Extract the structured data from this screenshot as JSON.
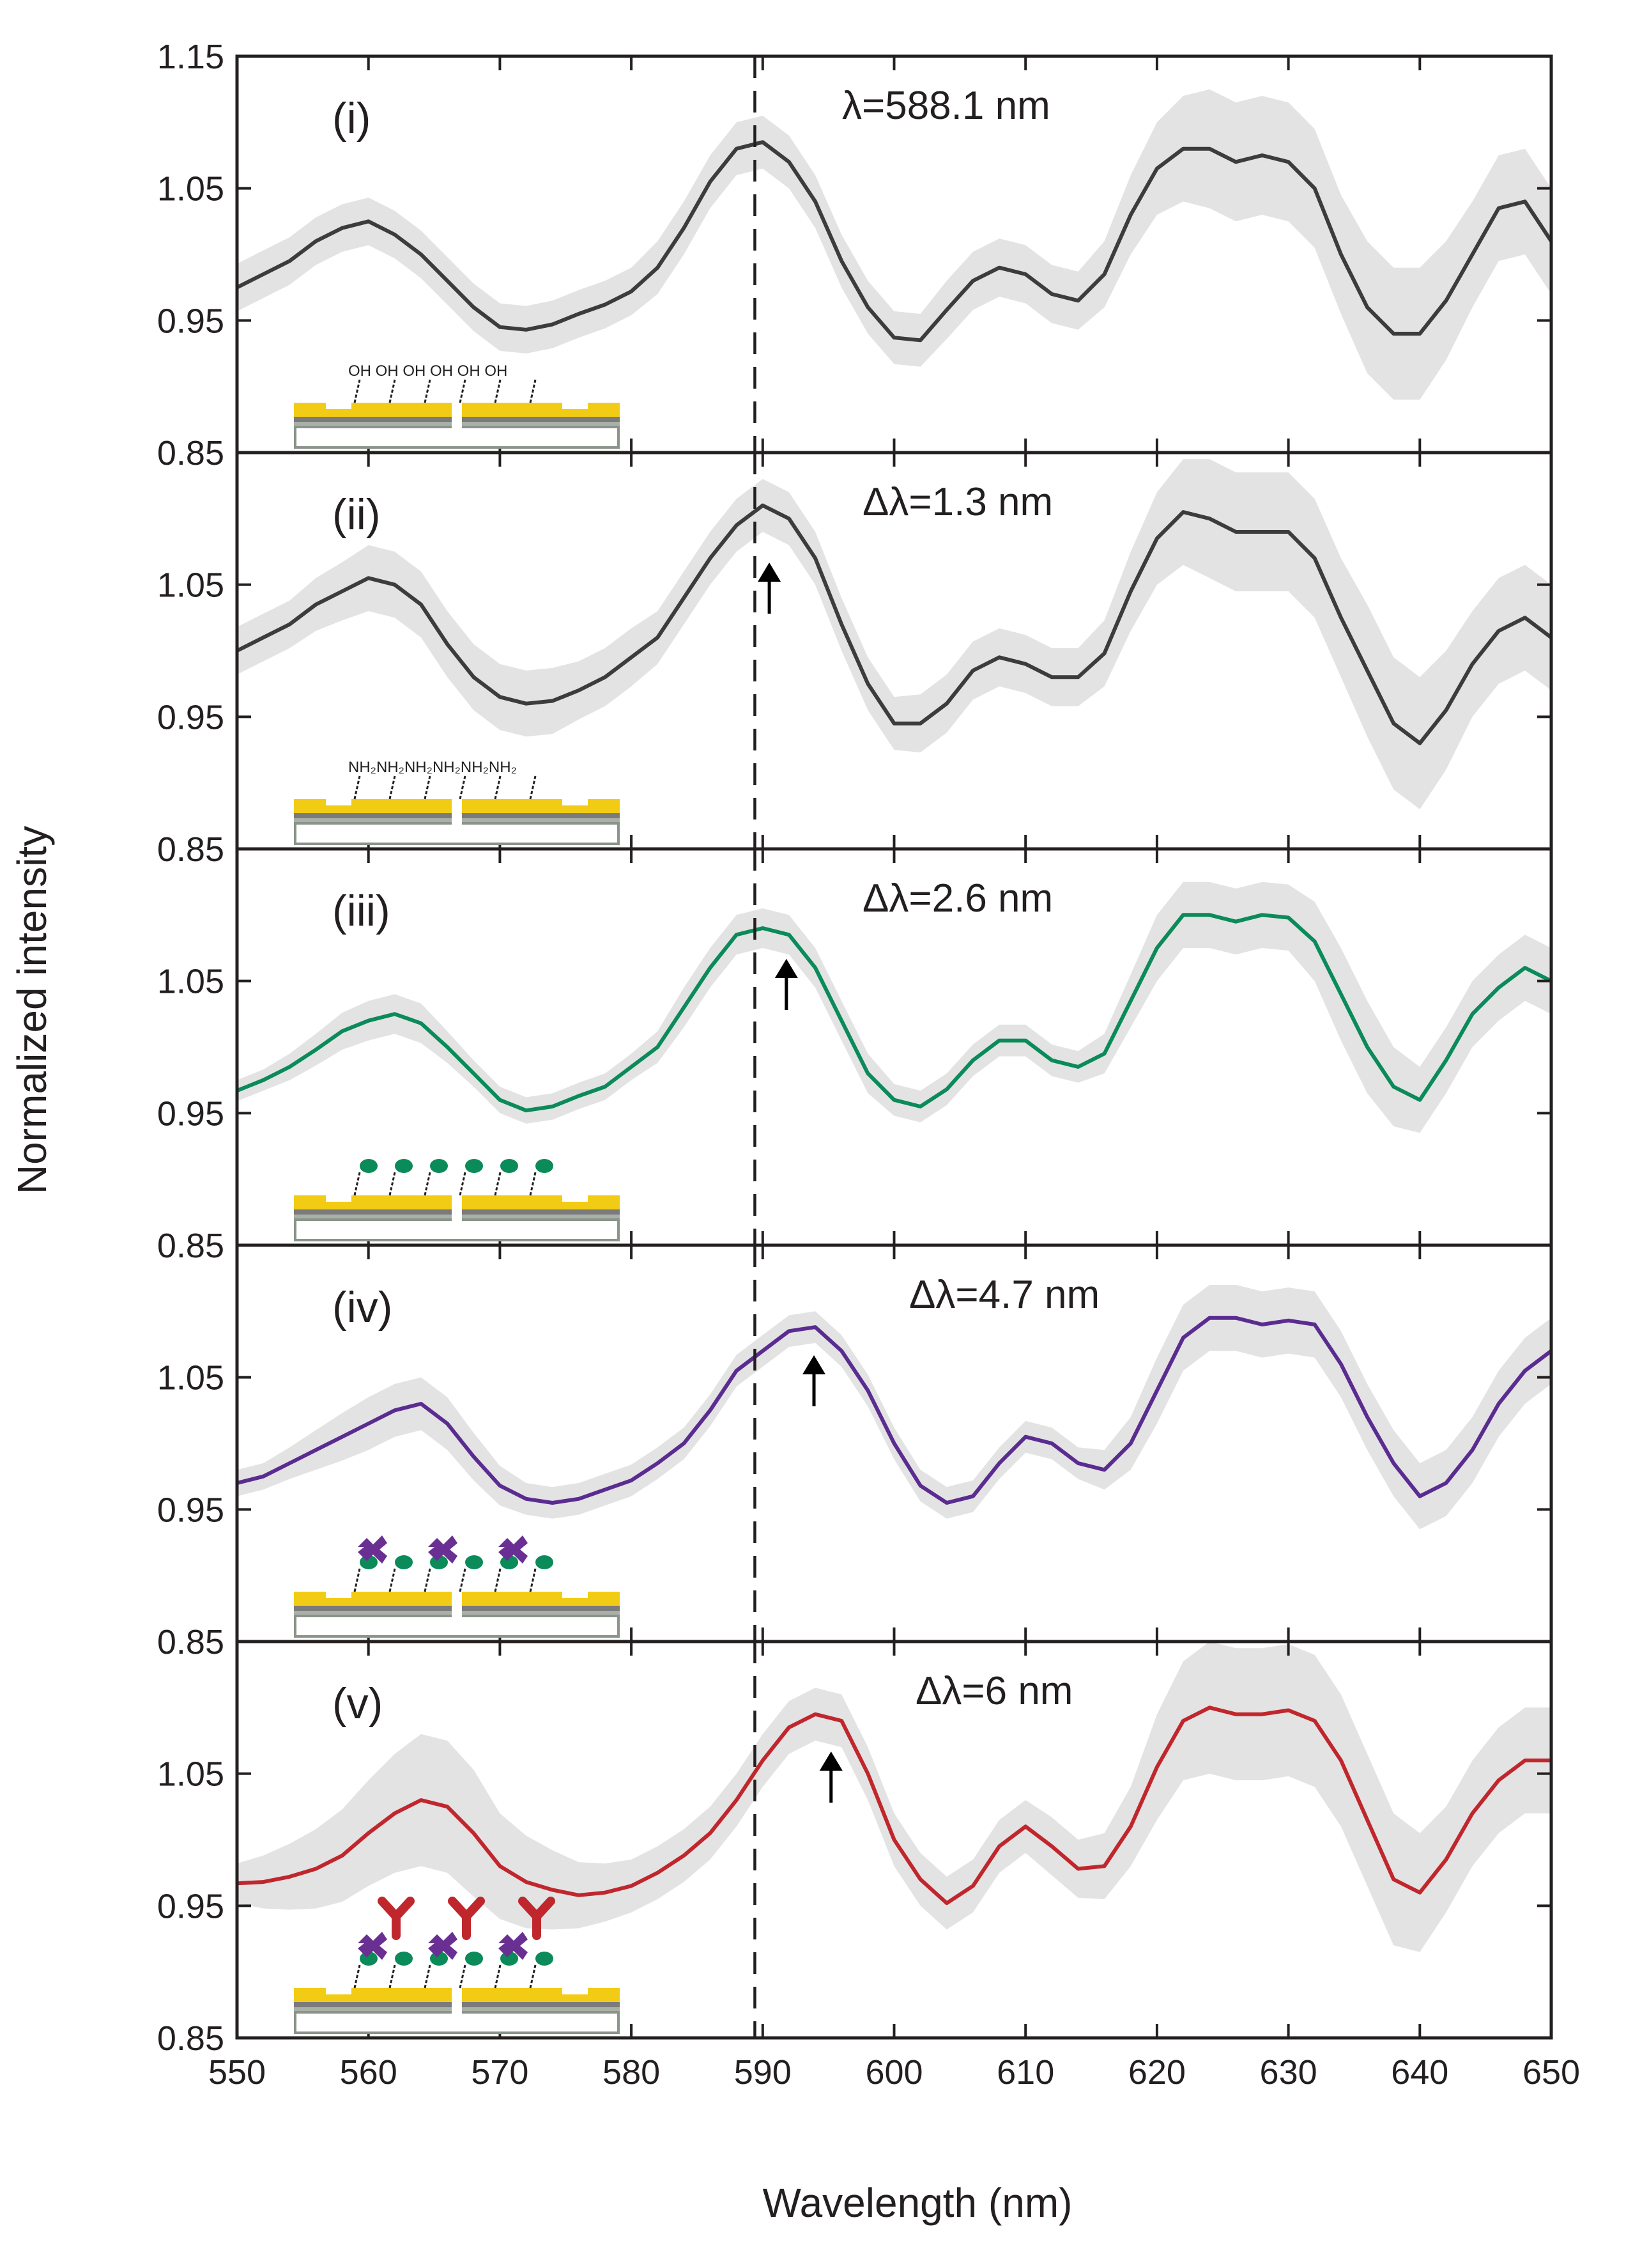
{
  "chart_data": {
    "type": "line",
    "shared_xlim": [
      550,
      650
    ],
    "xticks": [
      550,
      560,
      570,
      580,
      590,
      600,
      610,
      620,
      630,
      640,
      650
    ],
    "yticks": [
      0.85,
      0.95,
      1.05,
      1.15
    ],
    "ytick_labels": [
      "0.85",
      "0.95",
      "1.05",
      "1.15"
    ],
    "xlabel": "Wavelength (nm)",
    "ylabel": "Normalized intensity",
    "ylim": [
      0.85,
      1.15
    ],
    "reference_line_x": 589.4,
    "shaded_band": "standard deviation (light grey)",
    "grid": false,
    "x": [
      550,
      552,
      554,
      556,
      558,
      560,
      562,
      564,
      566,
      568,
      570,
      572,
      574,
      576,
      578,
      580,
      582,
      584,
      586,
      588,
      590,
      592,
      594,
      596,
      598,
      600,
      602,
      604,
      606,
      608,
      610,
      612,
      614,
      616,
      618,
      620,
      622,
      624,
      626,
      628,
      630,
      632,
      634,
      636,
      638,
      640,
      642,
      644,
      646,
      648,
      650
    ],
    "panels": [
      {
        "label": "(i)",
        "annotation": "λ=588.1 nm",
        "color": "#3c3c3c",
        "arrow_x": null,
        "inset_text": "OH OH OH OH OH OH",
        "y": [
          0.975,
          0.985,
          0.995,
          1.01,
          1.02,
          1.025,
          1.015,
          1.0,
          0.98,
          0.96,
          0.945,
          0.943,
          0.947,
          0.955,
          0.962,
          0.972,
          0.99,
          1.02,
          1.055,
          1.08,
          1.085,
          1.07,
          1.04,
          0.995,
          0.96,
          0.937,
          0.935,
          0.958,
          0.98,
          0.99,
          0.985,
          0.97,
          0.965,
          0.985,
          1.03,
          1.065,
          1.08,
          1.08,
          1.07,
          1.075,
          1.07,
          1.05,
          1.0,
          0.96,
          0.94,
          0.94,
          0.965,
          1.0,
          1.035,
          1.04,
          1.01
        ],
        "band": [
          0.018,
          0.018,
          0.018,
          0.018,
          0.018,
          0.018,
          0.018,
          0.018,
          0.018,
          0.018,
          0.018,
          0.018,
          0.018,
          0.018,
          0.018,
          0.018,
          0.02,
          0.02,
          0.02,
          0.02,
          0.02,
          0.02,
          0.02,
          0.02,
          0.02,
          0.02,
          0.02,
          0.022,
          0.022,
          0.022,
          0.022,
          0.022,
          0.022,
          0.025,
          0.03,
          0.035,
          0.04,
          0.045,
          0.045,
          0.045,
          0.045,
          0.045,
          0.045,
          0.05,
          0.05,
          0.05,
          0.045,
          0.04,
          0.04,
          0.04,
          0.04
        ]
      },
      {
        "label": "(ii)",
        "annotation": "Δλ=1.3 nm",
        "color": "#3c3c3c",
        "arrow_x": 590.5,
        "inset_text": "NH₂NH₂NH₂NH₂NH₂NH₂",
        "y": [
          1.0,
          1.01,
          1.02,
          1.035,
          1.045,
          1.055,
          1.05,
          1.035,
          1.005,
          0.98,
          0.965,
          0.96,
          0.962,
          0.97,
          0.98,
          0.995,
          1.01,
          1.04,
          1.07,
          1.095,
          1.11,
          1.1,
          1.07,
          1.02,
          0.975,
          0.945,
          0.945,
          0.96,
          0.985,
          0.995,
          0.99,
          0.98,
          0.98,
          0.998,
          1.045,
          1.085,
          1.105,
          1.1,
          1.09,
          1.09,
          1.09,
          1.07,
          1.025,
          0.985,
          0.945,
          0.93,
          0.955,
          0.99,
          1.015,
          1.025,
          1.01
        ],
        "band": [
          0.018,
          0.018,
          0.018,
          0.02,
          0.022,
          0.025,
          0.025,
          0.025,
          0.025,
          0.025,
          0.025,
          0.025,
          0.025,
          0.022,
          0.022,
          0.022,
          0.02,
          0.02,
          0.02,
          0.02,
          0.02,
          0.02,
          0.02,
          0.02,
          0.02,
          0.02,
          0.022,
          0.022,
          0.022,
          0.022,
          0.022,
          0.022,
          0.022,
          0.025,
          0.03,
          0.035,
          0.04,
          0.045,
          0.045,
          0.045,
          0.045,
          0.045,
          0.045,
          0.05,
          0.05,
          0.05,
          0.045,
          0.04,
          0.04,
          0.04,
          0.04
        ]
      },
      {
        "label": "(iii)",
        "annotation": "Δλ=2.6 nm",
        "color": "#0b8a5a",
        "arrow_x": 591.8,
        "inset_text": "",
        "y": [
          0.967,
          0.975,
          0.985,
          0.998,
          1.012,
          1.02,
          1.025,
          1.018,
          1.0,
          0.98,
          0.96,
          0.952,
          0.955,
          0.963,
          0.97,
          0.985,
          1.0,
          1.03,
          1.06,
          1.085,
          1.09,
          1.085,
          1.06,
          1.02,
          0.98,
          0.96,
          0.955,
          0.968,
          0.99,
          1.005,
          1.005,
          0.99,
          0.985,
          0.995,
          1.035,
          1.075,
          1.1,
          1.1,
          1.095,
          1.1,
          1.098,
          1.08,
          1.04,
          1.0,
          0.97,
          0.96,
          0.99,
          1.025,
          1.045,
          1.06,
          1.05
        ],
        "band": [
          0.008,
          0.008,
          0.01,
          0.012,
          0.014,
          0.015,
          0.015,
          0.015,
          0.012,
          0.01,
          0.01,
          0.01,
          0.01,
          0.01,
          0.01,
          0.01,
          0.012,
          0.015,
          0.015,
          0.015,
          0.015,
          0.015,
          0.015,
          0.015,
          0.015,
          0.012,
          0.012,
          0.012,
          0.012,
          0.012,
          0.012,
          0.012,
          0.012,
          0.015,
          0.02,
          0.025,
          0.025,
          0.025,
          0.025,
          0.025,
          0.025,
          0.03,
          0.035,
          0.035,
          0.03,
          0.025,
          0.025,
          0.025,
          0.025,
          0.025,
          0.025
        ]
      },
      {
        "label": "(iv)",
        "annotation": "Δλ=4.7 nm",
        "color": "#5b2c90",
        "arrow_x": 593.9,
        "inset_text": "",
        "y": [
          0.97,
          0.975,
          0.985,
          0.995,
          1.005,
          1.015,
          1.025,
          1.03,
          1.015,
          0.99,
          0.968,
          0.958,
          0.955,
          0.958,
          0.965,
          0.972,
          0.985,
          1.0,
          1.025,
          1.055,
          1.07,
          1.085,
          1.088,
          1.07,
          1.04,
          1.0,
          0.968,
          0.955,
          0.96,
          0.985,
          1.005,
          1.0,
          0.985,
          0.98,
          1.0,
          1.04,
          1.08,
          1.095,
          1.095,
          1.09,
          1.093,
          1.09,
          1.06,
          1.02,
          0.985,
          0.96,
          0.97,
          0.995,
          1.03,
          1.055,
          1.07
        ],
        "band": [
          0.01,
          0.01,
          0.012,
          0.015,
          0.018,
          0.02,
          0.02,
          0.02,
          0.02,
          0.018,
          0.015,
          0.012,
          0.012,
          0.012,
          0.012,
          0.012,
          0.012,
          0.012,
          0.012,
          0.012,
          0.012,
          0.012,
          0.012,
          0.012,
          0.012,
          0.012,
          0.012,
          0.012,
          0.012,
          0.012,
          0.012,
          0.012,
          0.012,
          0.015,
          0.02,
          0.025,
          0.025,
          0.025,
          0.025,
          0.025,
          0.025,
          0.025,
          0.025,
          0.025,
          0.025,
          0.025,
          0.025,
          0.025,
          0.025,
          0.025,
          0.025
        ]
      },
      {
        "label": "(v)",
        "annotation": "Δλ=6 nm",
        "color": "#c0272d",
        "arrow_x": 595.2,
        "inset_text": "",
        "y": [
          0.967,
          0.968,
          0.972,
          0.978,
          0.988,
          1.005,
          1.02,
          1.03,
          1.025,
          1.005,
          0.98,
          0.968,
          0.962,
          0.958,
          0.96,
          0.965,
          0.975,
          0.988,
          1.005,
          1.03,
          1.06,
          1.085,
          1.095,
          1.09,
          1.05,
          1.0,
          0.97,
          0.952,
          0.965,
          0.995,
          1.01,
          0.995,
          0.978,
          0.98,
          1.01,
          1.055,
          1.09,
          1.1,
          1.095,
          1.095,
          1.098,
          1.09,
          1.06,
          1.015,
          0.97,
          0.96,
          0.985,
          1.02,
          1.045,
          1.06,
          1.06
        ],
        "band": [
          0.015,
          0.02,
          0.025,
          0.03,
          0.035,
          0.04,
          0.045,
          0.05,
          0.05,
          0.048,
          0.04,
          0.035,
          0.03,
          0.025,
          0.022,
          0.02,
          0.02,
          0.02,
          0.02,
          0.02,
          0.02,
          0.02,
          0.02,
          0.02,
          0.02,
          0.02,
          0.02,
          0.02,
          0.02,
          0.02,
          0.02,
          0.022,
          0.022,
          0.025,
          0.03,
          0.04,
          0.045,
          0.05,
          0.05,
          0.05,
          0.05,
          0.05,
          0.05,
          0.05,
          0.05,
          0.045,
          0.04,
          0.04,
          0.04,
          0.04,
          0.04
        ]
      }
    ]
  }
}
